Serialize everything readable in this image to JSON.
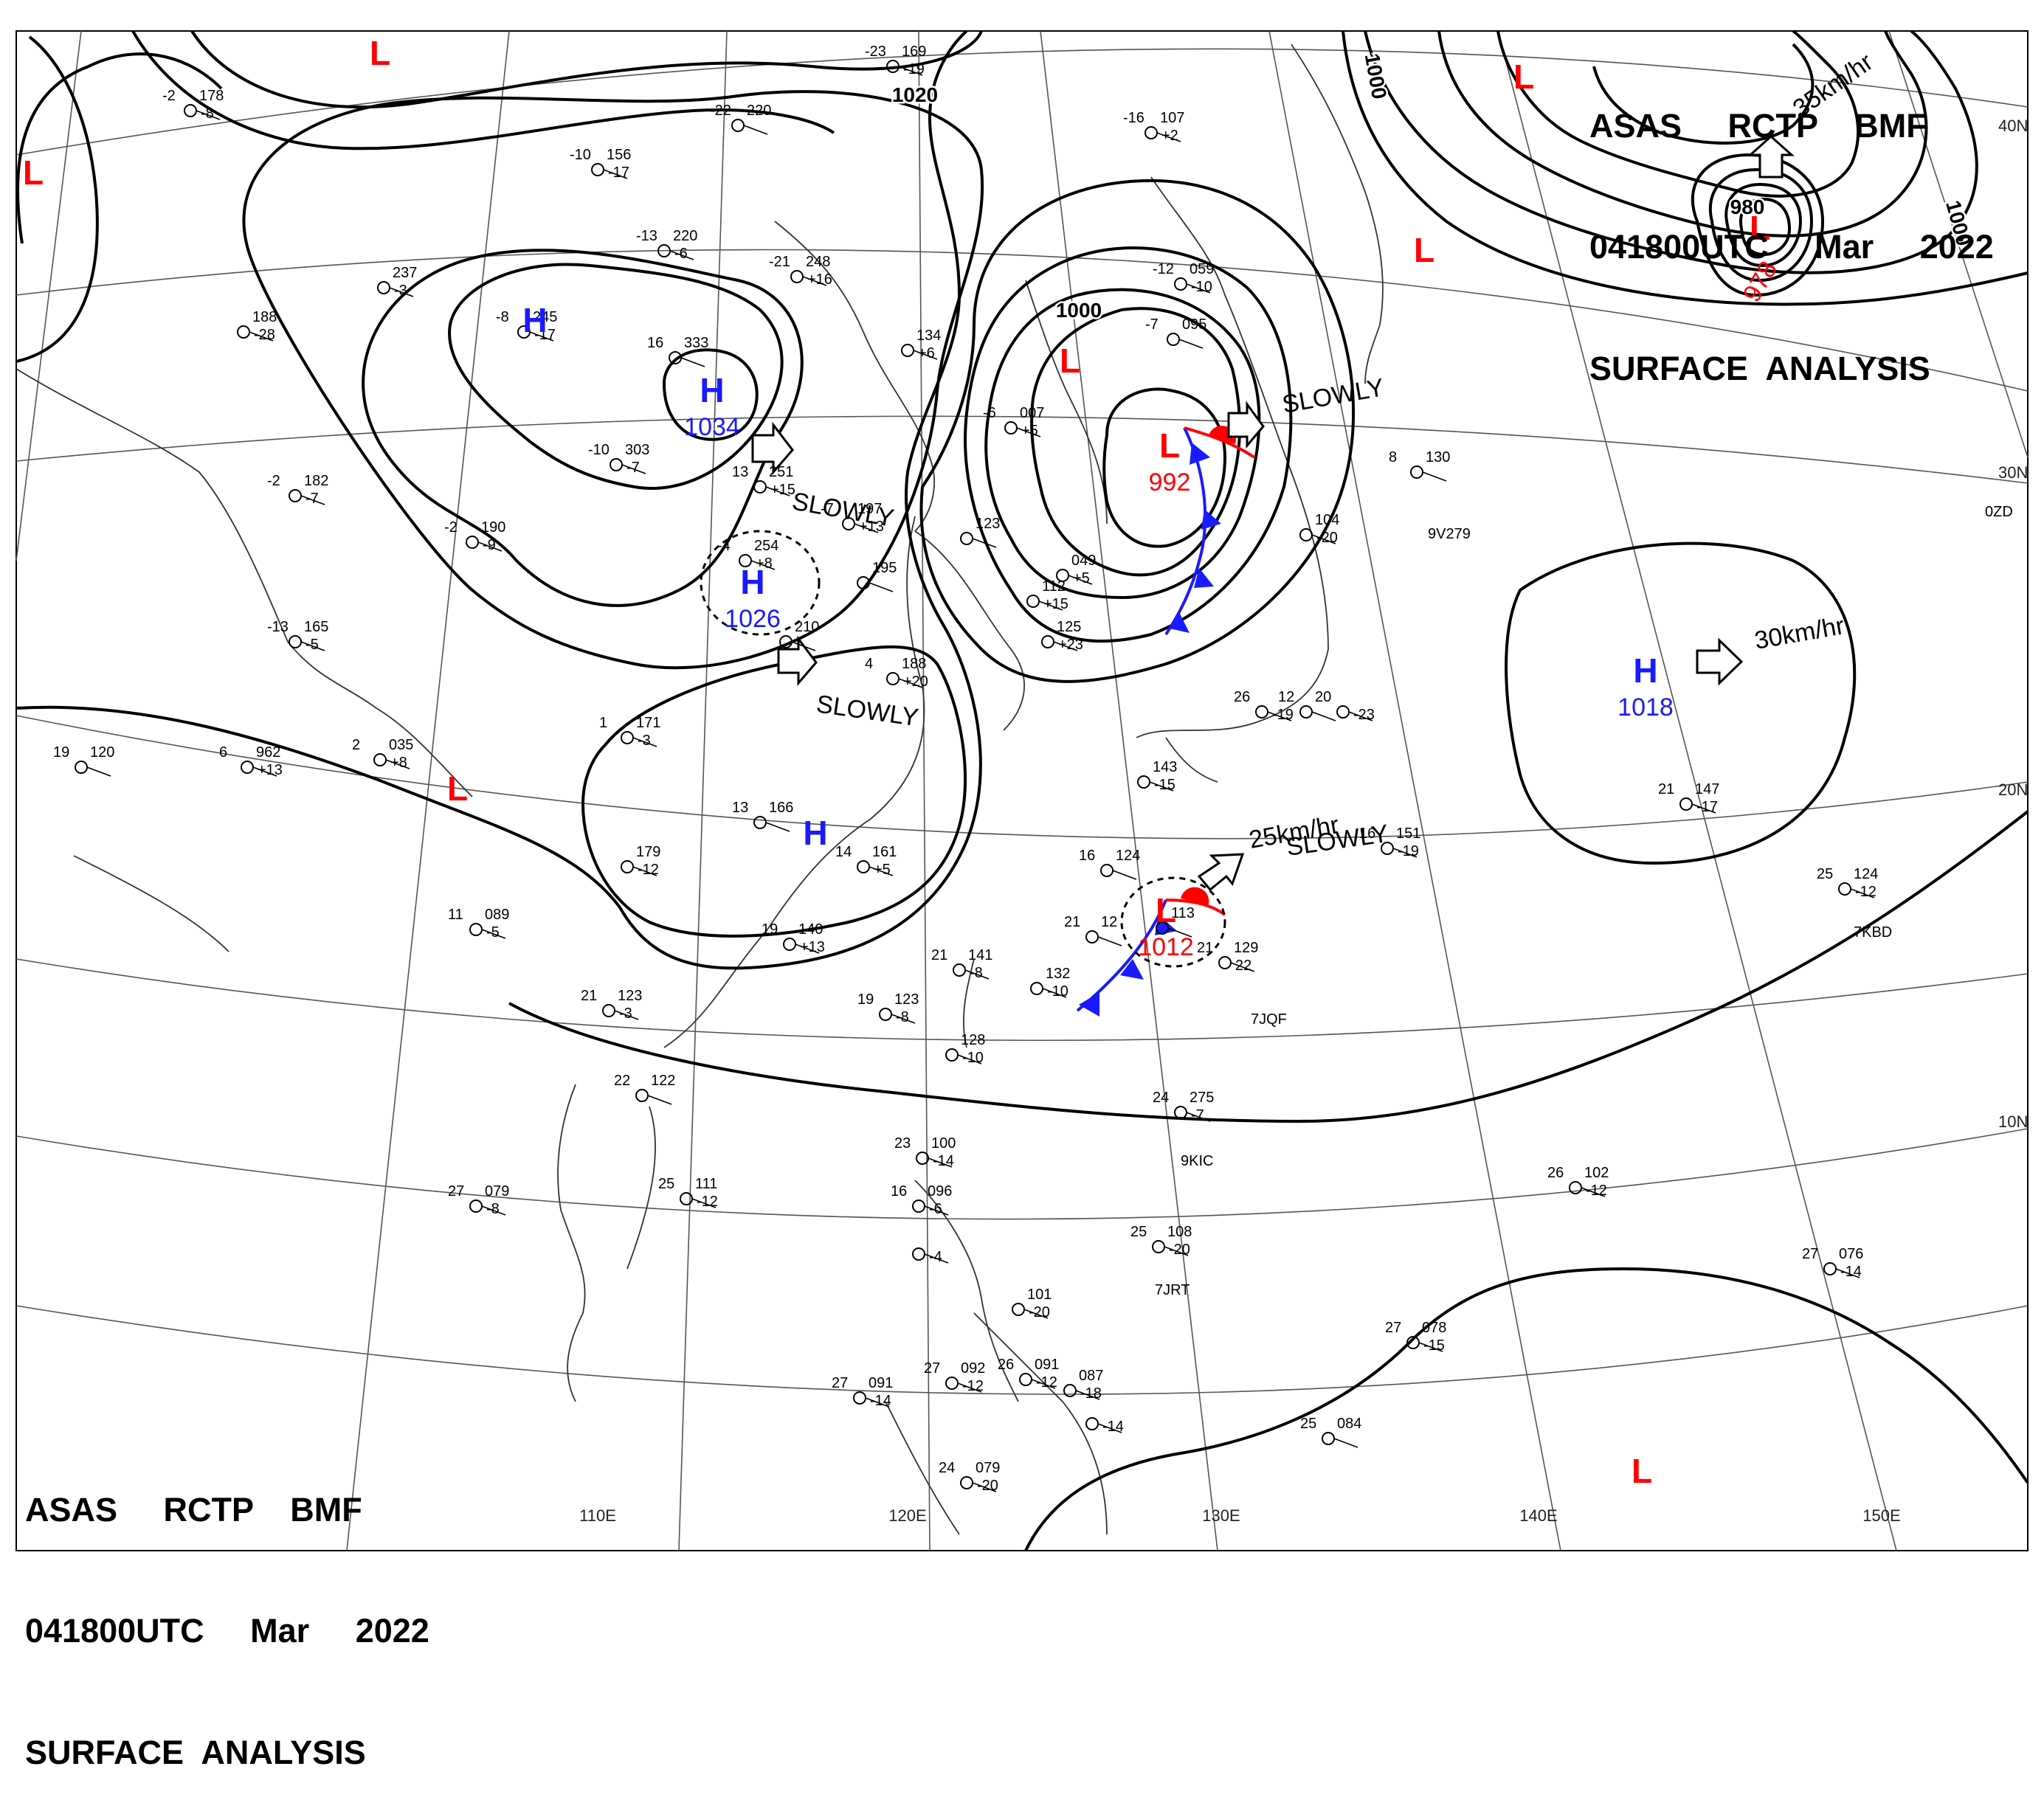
{
  "header": {
    "line1": "ASAS     RCTP    BMF",
    "line2": "041800UTC     Mar     2022",
    "line3": "SURFACE  ANALYSIS"
  },
  "lon_labels": [
    "110E",
    "120E",
    "130E",
    "140E",
    "150E"
  ],
  "lat_labels": [
    "40N",
    "30N",
    "20N",
    "10N"
  ],
  "isobar_labels": [
    "1020",
    "1000",
    "1000",
    "1000",
    "980"
  ],
  "pressure_centers": [
    {
      "type": "H",
      "value": "1034"
    },
    {
      "type": "H",
      "value": "1026"
    },
    {
      "type": "H",
      "value": "1018"
    },
    {
      "type": "H",
      "value": ""
    },
    {
      "type": "H",
      "value": ""
    },
    {
      "type": "L",
      "value": "992"
    },
    {
      "type": "L",
      "value": "978"
    },
    {
      "type": "L",
      "value": "1012"
    },
    {
      "type": "L",
      "value": ""
    },
    {
      "type": "L",
      "value": ""
    },
    {
      "type": "L",
      "value": ""
    },
    {
      "type": "L",
      "value": ""
    },
    {
      "type": "L",
      "value": ""
    },
    {
      "type": "L",
      "value": ""
    },
    {
      "type": "L",
      "value": ""
    }
  ],
  "movement_labels": [
    "SLOWLY",
    "SLOWLY",
    "SLOWLY",
    "SLOWLY",
    "25km/hr",
    "30km/hr",
    "35km/hr"
  ],
  "stations": [
    {
      "t": "-2",
      "p": "178",
      "d": "-8"
    },
    {
      "t": "-23",
      "p": "169",
      "d": "-19"
    },
    {
      "t": "-22",
      "p": "220",
      "d": ""
    },
    {
      "t": "-10",
      "p": "156",
      "d": "-17"
    },
    {
      "t": "-13",
      "p": "220",
      "d": "-6"
    },
    {
      "t": "-21",
      "p": "248",
      "d": "+16"
    },
    {
      "t": "",
      "p": "237",
      "d": "-3"
    },
    {
      "t": "",
      "p": "188",
      "d": "-28"
    },
    {
      "t": "-8",
      "p": "245",
      "d": "-17"
    },
    {
      "t": "16",
      "p": "333",
      "d": ""
    },
    {
      "t": "-16",
      "p": "107",
      "d": "+2"
    },
    {
      "t": "-12",
      "p": "059",
      "d": "-10"
    },
    {
      "t": "-7",
      "p": "095",
      "d": ""
    },
    {
      "t": "-6",
      "p": "007",
      "d": "+5"
    },
    {
      "t": "",
      "p": "134",
      "d": "+6"
    },
    {
      "t": "-10",
      "p": "303",
      "d": "-7"
    },
    {
      "t": "-2",
      "p": "182",
      "d": "-7"
    },
    {
      "t": "-2",
      "p": "190",
      "d": "-9"
    },
    {
      "t": "13",
      "p": "251",
      "d": "+15"
    },
    {
      "t": "-7",
      "p": "197",
      "d": "+13"
    },
    {
      "t": "-4",
      "p": "254",
      "d": "+8"
    },
    {
      "t": "",
      "p": "195",
      "d": ""
    },
    {
      "t": "",
      "p": "123",
      "d": ""
    },
    {
      "t": "",
      "p": "049",
      "d": "+5"
    },
    {
      "t": "",
      "p": "112",
      "d": "+15"
    },
    {
      "t": "",
      "p": "125",
      "d": "+23"
    },
    {
      "t": "",
      "p": "104",
      "d": "-20"
    },
    {
      "t": "8",
      "p": "130",
      "d": ""
    },
    {
      "t": "-13",
      "p": "165",
      "d": "-5"
    },
    {
      "t": "4",
      "p": "188",
      "d": "+20"
    },
    {
      "t": "",
      "p": "210",
      "d": ""
    },
    {
      "t": "6",
      "p": "962",
      "d": "+13"
    },
    {
      "t": "2",
      "p": "035",
      "d": "+8"
    },
    {
      "t": "19",
      "p": "120",
      "d": ""
    },
    {
      "t": "1",
      "p": "171",
      "d": "-3"
    },
    {
      "t": "26",
      "p": "",
      "d": "-19"
    },
    {
      "t": "12",
      "p": "",
      "d": ""
    },
    {
      "t": "20",
      "p": "",
      "d": "-23"
    },
    {
      "t": "",
      "p": "143",
      "d": "-15"
    },
    {
      "t": "13",
      "p": "166",
      "d": ""
    },
    {
      "t": "",
      "p": "179",
      "d": "-12"
    },
    {
      "t": "14",
      "p": "161",
      "d": "+5"
    },
    {
      "t": "16",
      "p": "124",
      "d": ""
    },
    {
      "t": "16",
      "p": "151",
      "d": "-19"
    },
    {
      "t": "21",
      "p": "147",
      "d": "-17"
    },
    {
      "t": "25",
      "p": "124",
      "d": "-12"
    },
    {
      "t": "11",
      "p": "089",
      "d": "-5"
    },
    {
      "t": "19",
      "p": "140",
      "d": "+13"
    },
    {
      "t": "21",
      "p": "141",
      "d": "-8"
    },
    {
      "t": "",
      "p": "132",
      "d": "-10"
    },
    {
      "t": "21",
      "p": "12",
      "d": ""
    },
    {
      "t": "",
      "p": "113",
      "d": ""
    },
    {
      "t": "21",
      "p": "129",
      "d": "22"
    },
    {
      "t": "21",
      "p": "123",
      "d": "-3"
    },
    {
      "t": "19",
      "p": "123",
      "d": "-8"
    },
    {
      "t": "",
      "p": "128",
      "d": "-10"
    },
    {
      "t": "22",
      "p": "122",
      "d": ""
    },
    {
      "t": "24",
      "p": "275",
      "d": "-7"
    },
    {
      "t": "23",
      "p": "100",
      "d": "-14"
    },
    {
      "t": "16",
      "p": "096",
      "d": "-6"
    },
    {
      "t": "",
      "p": "",
      "d": "-4"
    },
    {
      "t": "25",
      "p": "111",
      "d": "-12"
    },
    {
      "t": "27",
      "p": "079",
      "d": "-8"
    },
    {
      "t": "26",
      "p": "102",
      "d": "-12"
    },
    {
      "t": "25",
      "p": "108",
      "d": "-20"
    },
    {
      "t": "",
      "p": "101",
      "d": "-20"
    },
    {
      "t": "27",
      "p": "076",
      "d": "-14"
    },
    {
      "t": "27",
      "p": "078",
      "d": "-15"
    },
    {
      "t": "27",
      "p": "092",
      "d": "-12"
    },
    {
      "t": "26",
      "p": "091",
      "d": "-12"
    },
    {
      "t": "",
      "p": "087",
      "d": "-18"
    },
    {
      "t": "27",
      "p": "091",
      "d": "-14"
    },
    {
      "t": "25",
      "p": "084",
      "d": ""
    },
    {
      "t": "24",
      "p": "079",
      "d": "-20"
    },
    {
      "t": "",
      "p": "",
      "d": "-14"
    }
  ],
  "ship_ids": [
    "9V279",
    "7KBD",
    "7JQF",
    "9KIC",
    "7JRT",
    "0ZD"
  ],
  "colors": {
    "high": "#1a1aff",
    "low": "#ff0000",
    "isobar": "#000000",
    "grid": "#000000"
  }
}
